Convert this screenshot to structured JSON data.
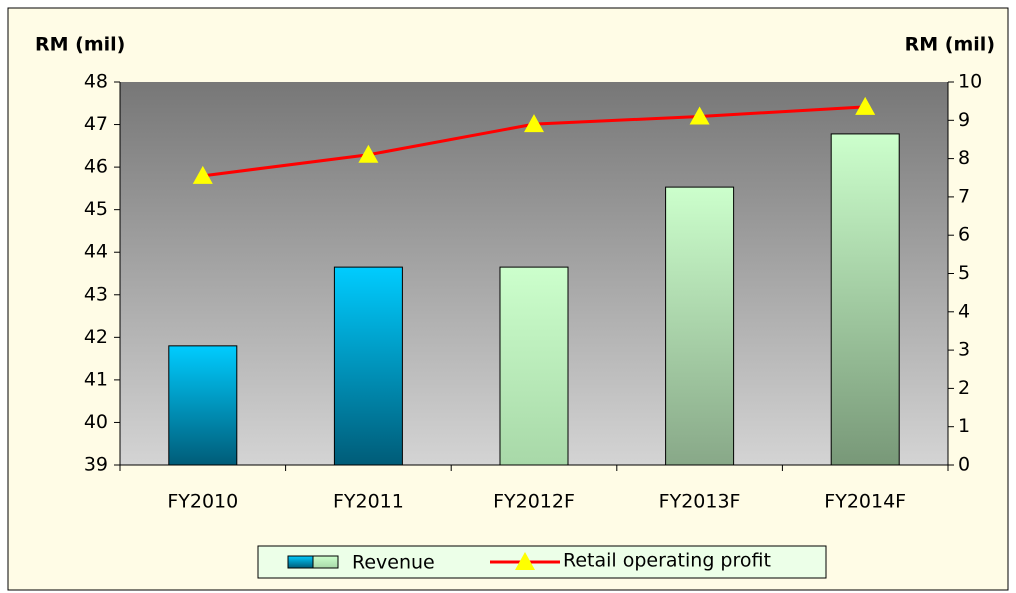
{
  "chart_data": {
    "type": "bar_line",
    "y_label": "RM (mil)",
    "y2_label": "RM (mil)",
    "categories": [
      "FY2010",
      "FY2011",
      "FY2012F",
      "FY2013F",
      "FY2014F"
    ],
    "series": [
      {
        "name": "Revenue",
        "type": "bar",
        "axis": "y",
        "values": [
          41.8,
          43.65,
          43.65,
          45.53,
          46.78
        ],
        "colors": [
          [
            "#00ccff",
            "#005c78"
          ],
          [
            "#00ccff",
            "#005c78"
          ],
          [
            "#ccffcc",
            "#a8d8a8"
          ],
          [
            "#ccffcc",
            "#88a888"
          ],
          [
            "#ccffcc",
            "#789878"
          ]
        ]
      },
      {
        "name": "Retail operating profit",
        "type": "line",
        "axis": "y2",
        "color": "#ff0000",
        "marker_color": "#ffff00",
        "values": [
          7.55,
          8.1,
          8.9,
          9.1,
          9.35
        ]
      }
    ],
    "ylim": [
      39,
      48
    ],
    "yticks": [
      39,
      40,
      41,
      42,
      43,
      44,
      45,
      46,
      47,
      48
    ],
    "y2lim": [
      0,
      10
    ],
    "y2ticks": [
      0,
      1,
      2,
      3,
      4,
      5,
      6,
      7,
      8,
      9,
      10
    ],
    "legend": "bottom"
  }
}
